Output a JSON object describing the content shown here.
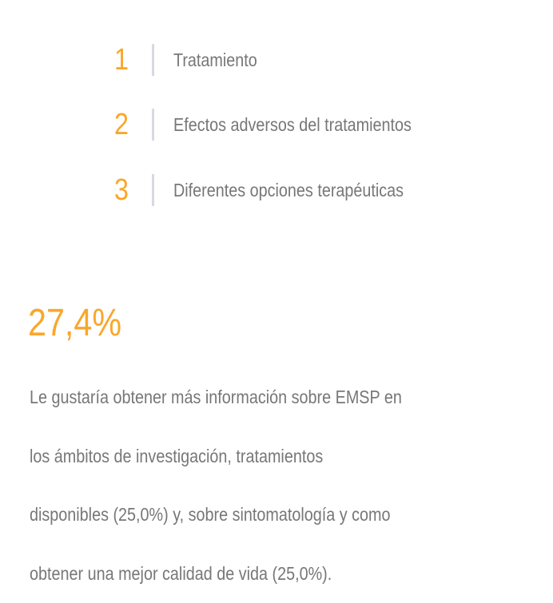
{
  "ranking": [
    {
      "number": "1",
      "label": "Tratamiento"
    },
    {
      "number": "2",
      "label": "Efectos adversos del tratamientos"
    },
    {
      "number": "3",
      "label": "Diferentes opciones terapéuticas"
    }
  ],
  "highlight": {
    "value": "27,4%",
    "lines": [
      "Le gustaría obtener más información sobre EMSP en",
      "los ámbitos de investigación, tratamientos",
      "disponibles (25,0%) y, sobre sintomatología y como",
      "obtener una mejor calidad de vida (25,0%)."
    ]
  },
  "colors": {
    "accent": "#f9a72b",
    "text": "#777777",
    "divider": "#d9d9e2"
  }
}
